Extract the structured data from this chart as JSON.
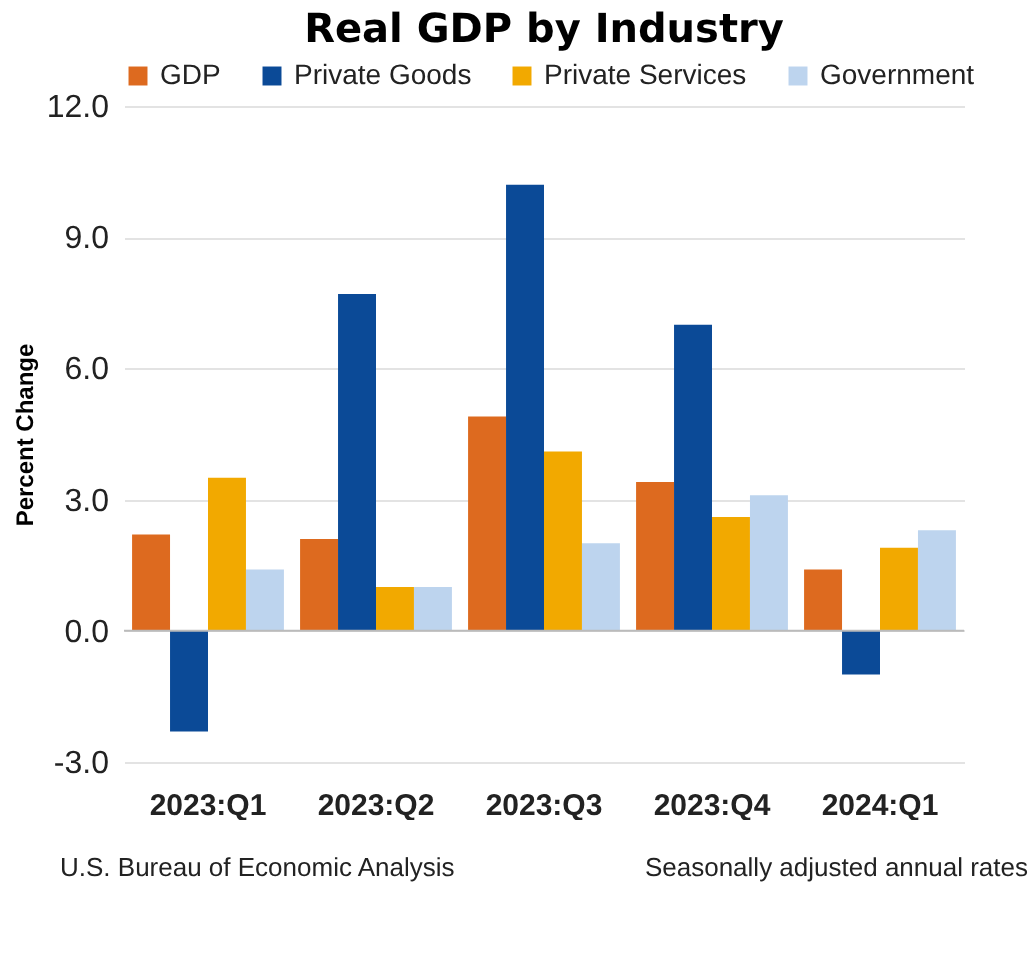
{
  "chart_data": {
    "type": "bar",
    "title": "Real GDP by Industry",
    "ylabel": "Percent Change",
    "categories": [
      "2023:Q1",
      "2023:Q2",
      "2023:Q3",
      "2023:Q4",
      "2024:Q1"
    ],
    "series": [
      {
        "name": "GDP",
        "color": "#dd6a1f",
        "values": [
          2.2,
          2.1,
          4.9,
          3.4,
          1.4
        ]
      },
      {
        "name": "Private Goods",
        "color": "#0b4a97",
        "values": [
          -2.3,
          7.7,
          10.2,
          7.0,
          -1.0
        ]
      },
      {
        "name": "Private Services",
        "color": "#f2a900",
        "values": [
          3.5,
          1.0,
          4.1,
          2.6,
          1.9
        ]
      },
      {
        "name": "Government",
        "color": "#bdd4ee",
        "values": [
          1.4,
          1.0,
          2.0,
          3.1,
          2.3
        ]
      }
    ],
    "ylim": [
      -3,
      12
    ],
    "yticks": [
      {
        "value": -3,
        "label": "-3.0"
      },
      {
        "value": 0,
        "label": "0.0"
      },
      {
        "value": 3,
        "label": "3.0"
      },
      {
        "value": 6,
        "label": "6.0"
      },
      {
        "value": 9,
        "label": "9.0"
      },
      {
        "value": 12,
        "label": "12.0"
      }
    ],
    "grid": "y",
    "legend": "top",
    "annotations": [
      "U.S. Bureau of Economic Analysis",
      "Seasonally adjusted annual rates"
    ]
  }
}
